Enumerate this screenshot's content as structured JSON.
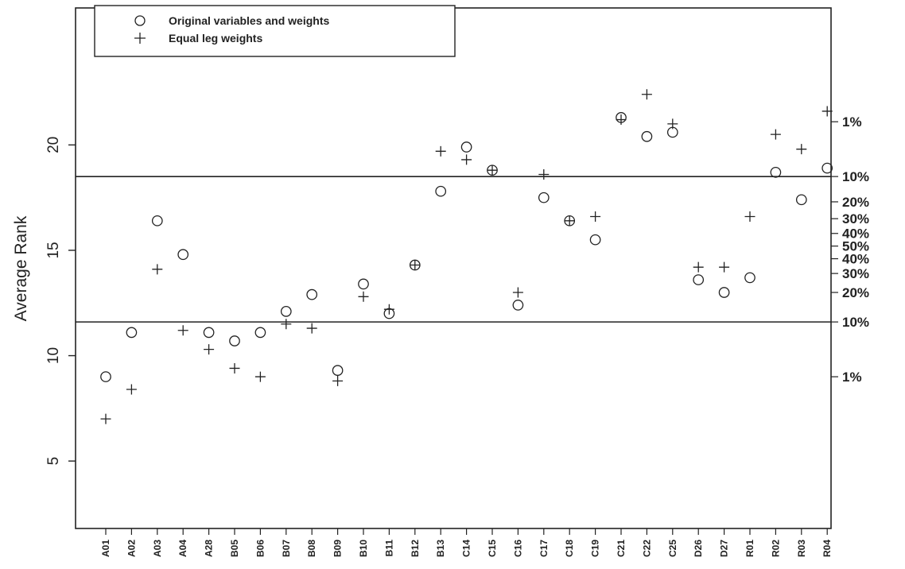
{
  "chart_data": {
    "type": "scatter",
    "ylabel": "Average Rank",
    "ylim": [
      1.8,
      26.5
    ],
    "yticks": [
      5,
      10,
      15,
      20
    ],
    "grid": false,
    "legend_position": "top-left",
    "categories": [
      "A01",
      "A02",
      "A03",
      "A04",
      "A28",
      "B05",
      "B06",
      "B07",
      "B08",
      "B09",
      "B10",
      "B11",
      "B12",
      "B13",
      "C14",
      "C15",
      "C16",
      "C17",
      "C18",
      "C19",
      "C21",
      "C22",
      "C25",
      "D26",
      "D27",
      "R01",
      "R02",
      "R03",
      "R04"
    ],
    "series": [
      {
        "name": "Original variables and weights",
        "marker": "circle",
        "values": [
          9.0,
          11.1,
          16.4,
          14.8,
          11.1,
          10.7,
          11.1,
          12.1,
          12.9,
          9.3,
          13.4,
          12.0,
          14.3,
          17.8,
          19.9,
          18.8,
          12.4,
          17.5,
          16.4,
          15.5,
          21.3,
          20.4,
          20.6,
          13.6,
          13.0,
          13.7,
          18.7,
          17.4,
          18.9
        ]
      },
      {
        "name": "Equal leg weights",
        "marker": "plus",
        "values": [
          7.0,
          8.4,
          14.1,
          11.2,
          10.3,
          9.4,
          9.0,
          11.5,
          11.3,
          8.8,
          12.8,
          12.2,
          14.3,
          19.7,
          19.3,
          18.8,
          13.0,
          18.6,
          16.4,
          16.6,
          21.2,
          22.4,
          21.0,
          14.2,
          14.2,
          16.6,
          20.5,
          19.8,
          21.6
        ]
      }
    ],
    "reference_lines": [
      {
        "y": 18.5,
        "label": "10%"
      },
      {
        "y": 11.6,
        "label": "10%"
      }
    ],
    "right_axis_labels": [
      {
        "y": 21.1,
        "label": "1%"
      },
      {
        "y": 18.5,
        "label": "10%"
      },
      {
        "y": 17.3,
        "label": "20%"
      },
      {
        "y": 16.5,
        "label": "30%"
      },
      {
        "y": 15.8,
        "label": "40%"
      },
      {
        "y": 15.2,
        "label": "50%"
      },
      {
        "y": 14.6,
        "label": "40%"
      },
      {
        "y": 13.9,
        "label": "30%"
      },
      {
        "y": 13.0,
        "label": "20%"
      },
      {
        "y": 11.6,
        "label": "10%"
      },
      {
        "y": 9.0,
        "label": "1%"
      }
    ]
  }
}
